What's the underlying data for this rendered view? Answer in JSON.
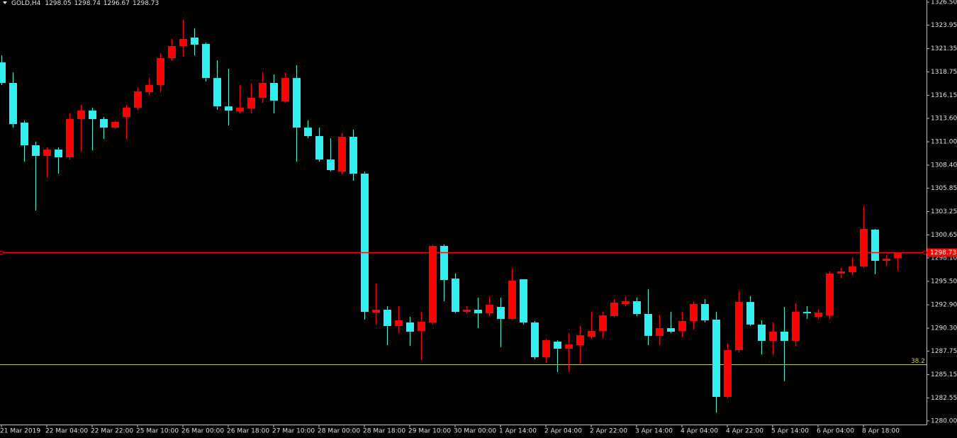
{
  "chart_data": {
    "type": "candlestick",
    "title": "GOLD,H4",
    "categories": [
      "21 Mar 2019",
      null,
      null,
      null,
      "22 Mar 04:00",
      null,
      null,
      null,
      "22 Mar 22:00",
      null,
      null,
      null,
      "25 Mar 10:00",
      null,
      null,
      null,
      "26 Mar 00:00",
      null,
      null,
      null,
      "26 Mar 18:00",
      null,
      null,
      null,
      "27 Mar 10:00",
      null,
      null,
      null,
      "28 Mar 00:00",
      null,
      null,
      null,
      "28 Mar 18:00",
      null,
      null,
      null,
      "29 Mar 10:00",
      null,
      null,
      null,
      "30 Mar 00:00",
      null,
      null,
      null,
      "1 Apr 14:00",
      null,
      null,
      null,
      "2 Apr 04:00",
      null,
      null,
      null,
      "2 Apr 22:00",
      null,
      null,
      null,
      "3 Apr 14:00",
      null,
      null,
      null,
      "4 Apr 04:00",
      null,
      null,
      null,
      "4 Apr 22:00",
      null,
      null,
      null,
      "5 Apr 14:00",
      null,
      null,
      null,
      "6 Apr 04:00",
      null,
      null,
      null,
      "8 Apr 18:00",
      null,
      null,
      null
    ],
    "open": [
      1319.81,
      1317.53,
      1313.12,
      1310.61,
      1309.43,
      1310.13,
      1309.27,
      1313.52,
      1314.46,
      1313.52,
      1312.57,
      1313.75,
      1314.78,
      1316.51,
      1317.3,
      1320.29,
      1321.62,
      1322.57,
      1321.86,
      1318.08,
      1314.93,
      1314.38,
      1314.7,
      1315.88,
      1317.53,
      1315.49,
      1318.08,
      1312.57,
      1311.63,
      1309.03,
      1307.69,
      1311.55,
      1307.46,
      1292.03,
      1292.35,
      1290.54,
      1290.93,
      1289.99,
      1290.93,
      1299.43,
      1295.81,
      1292.11,
      1292.35,
      1291.95,
      1292.66,
      1291.32,
      1295.73,
      1290.93,
      1287.08,
      1288.81,
      1288.02,
      1288.41,
      1289.36,
      1289.99,
      1291.64,
      1292.98,
      1293.29,
      1291.88,
      1289.44,
      1290.3,
      1289.99,
      1291.09,
      1292.98,
      1291.25,
      1282.67,
      1287.86,
      1293.21,
      1290.7,
      1288.89,
      1289.91,
      1288.89,
      1292.11,
      1291.56,
      1291.72,
      1296.36,
      1296.52,
      1297.15,
      1301.24,
      1297.78,
      1298.05
    ],
    "high": [
      1320.6,
      1318.71,
      1313.36,
      1311.0,
      1310.37,
      1310.37,
      1314.15,
      1315.09,
      1314.78,
      1313.75,
      1313.36,
      1315.09,
      1317.06,
      1318.08,
      1320.84,
      1322.41,
      1324.54,
      1323.59,
      1322.02,
      1320.05,
      1319.11,
      1317.3,
      1317.45,
      1318.71,
      1318.48,
      1318.63,
      1319.5,
      1313.36,
      1312.57,
      1311.39,
      1311.94,
      1312.34,
      1307.69,
      1295.26,
      1292.74,
      1292.74,
      1291.56,
      1292.11,
      1299.59,
      1299.59,
      1296.36,
      1292.74,
      1293.69,
      1293.84,
      1293.69,
      1296.99,
      1295.73,
      1291.09,
      1289.12,
      1288.96,
      1289.75,
      1290.54,
      1292.11,
      1292.11,
      1293.53,
      1293.84,
      1293.69,
      1294.63,
      1291.72,
      1292.11,
      1292.11,
      1293.29,
      1293.53,
      1292.11,
      1288.57,
      1294.47,
      1293.84,
      1291.17,
      1290.93,
      1292.66,
      1293.06,
      1292.74,
      1292.35,
      1296.6,
      1296.99,
      1298.17,
      1303.92,
      1301.32,
      1298.41,
      1298.74
    ],
    "low": [
      1317.3,
      1312.57,
      1308.8,
      1303.37,
      1307.06,
      1307.46,
      1309.03,
      1309.9,
      1310.06,
      1311.31,
      1312.42,
      1311.31,
      1314.54,
      1316.12,
      1316.51,
      1320.05,
      1320.44,
      1320.6,
      1317.69,
      1314.54,
      1312.81,
      1314.15,
      1314.15,
      1315.33,
      1314.15,
      1315.33,
      1308.8,
      1311.39,
      1308.8,
      1307.69,
      1307.46,
      1306.67,
      1291.25,
      1290.7,
      1288.41,
      1289.75,
      1288.33,
      1286.76,
      1290.7,
      1293.29,
      1291.95,
      1291.95,
      1290.3,
      1291.72,
      1288.18,
      1291.17,
      1290.7,
      1286.84,
      1286.45,
      1285.42,
      1285.42,
      1286.37,
      1289.12,
      1289.12,
      1291.48,
      1292.74,
      1291.64,
      1288.41,
      1288.41,
      1289.75,
      1289.36,
      1290.14,
      1290.93,
      1280.94,
      1282.51,
      1287.63,
      1290.54,
      1287.39,
      1287.39,
      1284.4,
      1288.33,
      1291.32,
      1291.32,
      1291.32,
      1295.89,
      1296.2,
      1296.99,
      1296.28,
      1297.23,
      1296.67
    ],
    "close": [
      1317.53,
      1312.97,
      1310.61,
      1309.43,
      1310.13,
      1309.27,
      1313.52,
      1314.46,
      1313.52,
      1312.57,
      1313.2,
      1314.78,
      1316.59,
      1317.3,
      1320.29,
      1321.62,
      1322.41,
      1321.78,
      1318.08,
      1314.93,
      1314.46,
      1314.78,
      1315.88,
      1317.53,
      1315.56,
      1318.08,
      1312.57,
      1311.63,
      1309.03,
      1307.85,
      1311.55,
      1307.46,
      1292.11,
      1292.35,
      1290.54,
      1291.17,
      1289.91,
      1291.01,
      1299.43,
      1295.65,
      1292.11,
      1292.35,
      1291.95,
      1292.9,
      1291.32,
      1295.57,
      1290.93,
      1287.08,
      1288.96,
      1288.02,
      1288.49,
      1289.51,
      1289.99,
      1291.72,
      1293.14,
      1293.29,
      1291.88,
      1289.44,
      1290.3,
      1289.91,
      1291.09,
      1292.98,
      1291.17,
      1282.67,
      1287.86,
      1293.21,
      1290.7,
      1288.89,
      1289.91,
      1288.89,
      1292.11,
      1291.95,
      1292.03,
      1296.36,
      1296.6,
      1297.15,
      1301.32,
      1297.78,
      1298.01,
      1298.73
    ],
    "up_color": "#ff0000",
    "down_color": "#33f0f0",
    "ylim": [
      1279.6,
      1326.74
    ],
    "yticks": [
      {
        "value": 1326.5,
        "label": "1326.50"
      },
      1323.95,
      1321.35,
      1318.75,
      1316.15,
      {
        "value": 1313.6,
        "label": "1313.60"
      },
      {
        "value": 1311,
        "label": "1311.00"
      },
      {
        "value": 1308.4,
        "label": "1308.40"
      },
      1305.85,
      1303.25,
      1300.65,
      {
        "value": 1298.1,
        "label": "1298.10"
      },
      {
        "value": 1295.5,
        "label": "1295.50"
      },
      {
        "value": 1292.9,
        "label": "1292.90"
      },
      {
        "value": 1290.3,
        "label": "1290.30"
      },
      1287.75,
      1285.15,
      1282.55,
      {
        "value": 1280,
        "label": "1280.00"
      }
    ],
    "price_line_color": "#ff0000",
    "fib_level": {
      "label": "38.2",
      "price": 1286.29,
      "color": "#c8c850"
    },
    "grid": false
  }
}
